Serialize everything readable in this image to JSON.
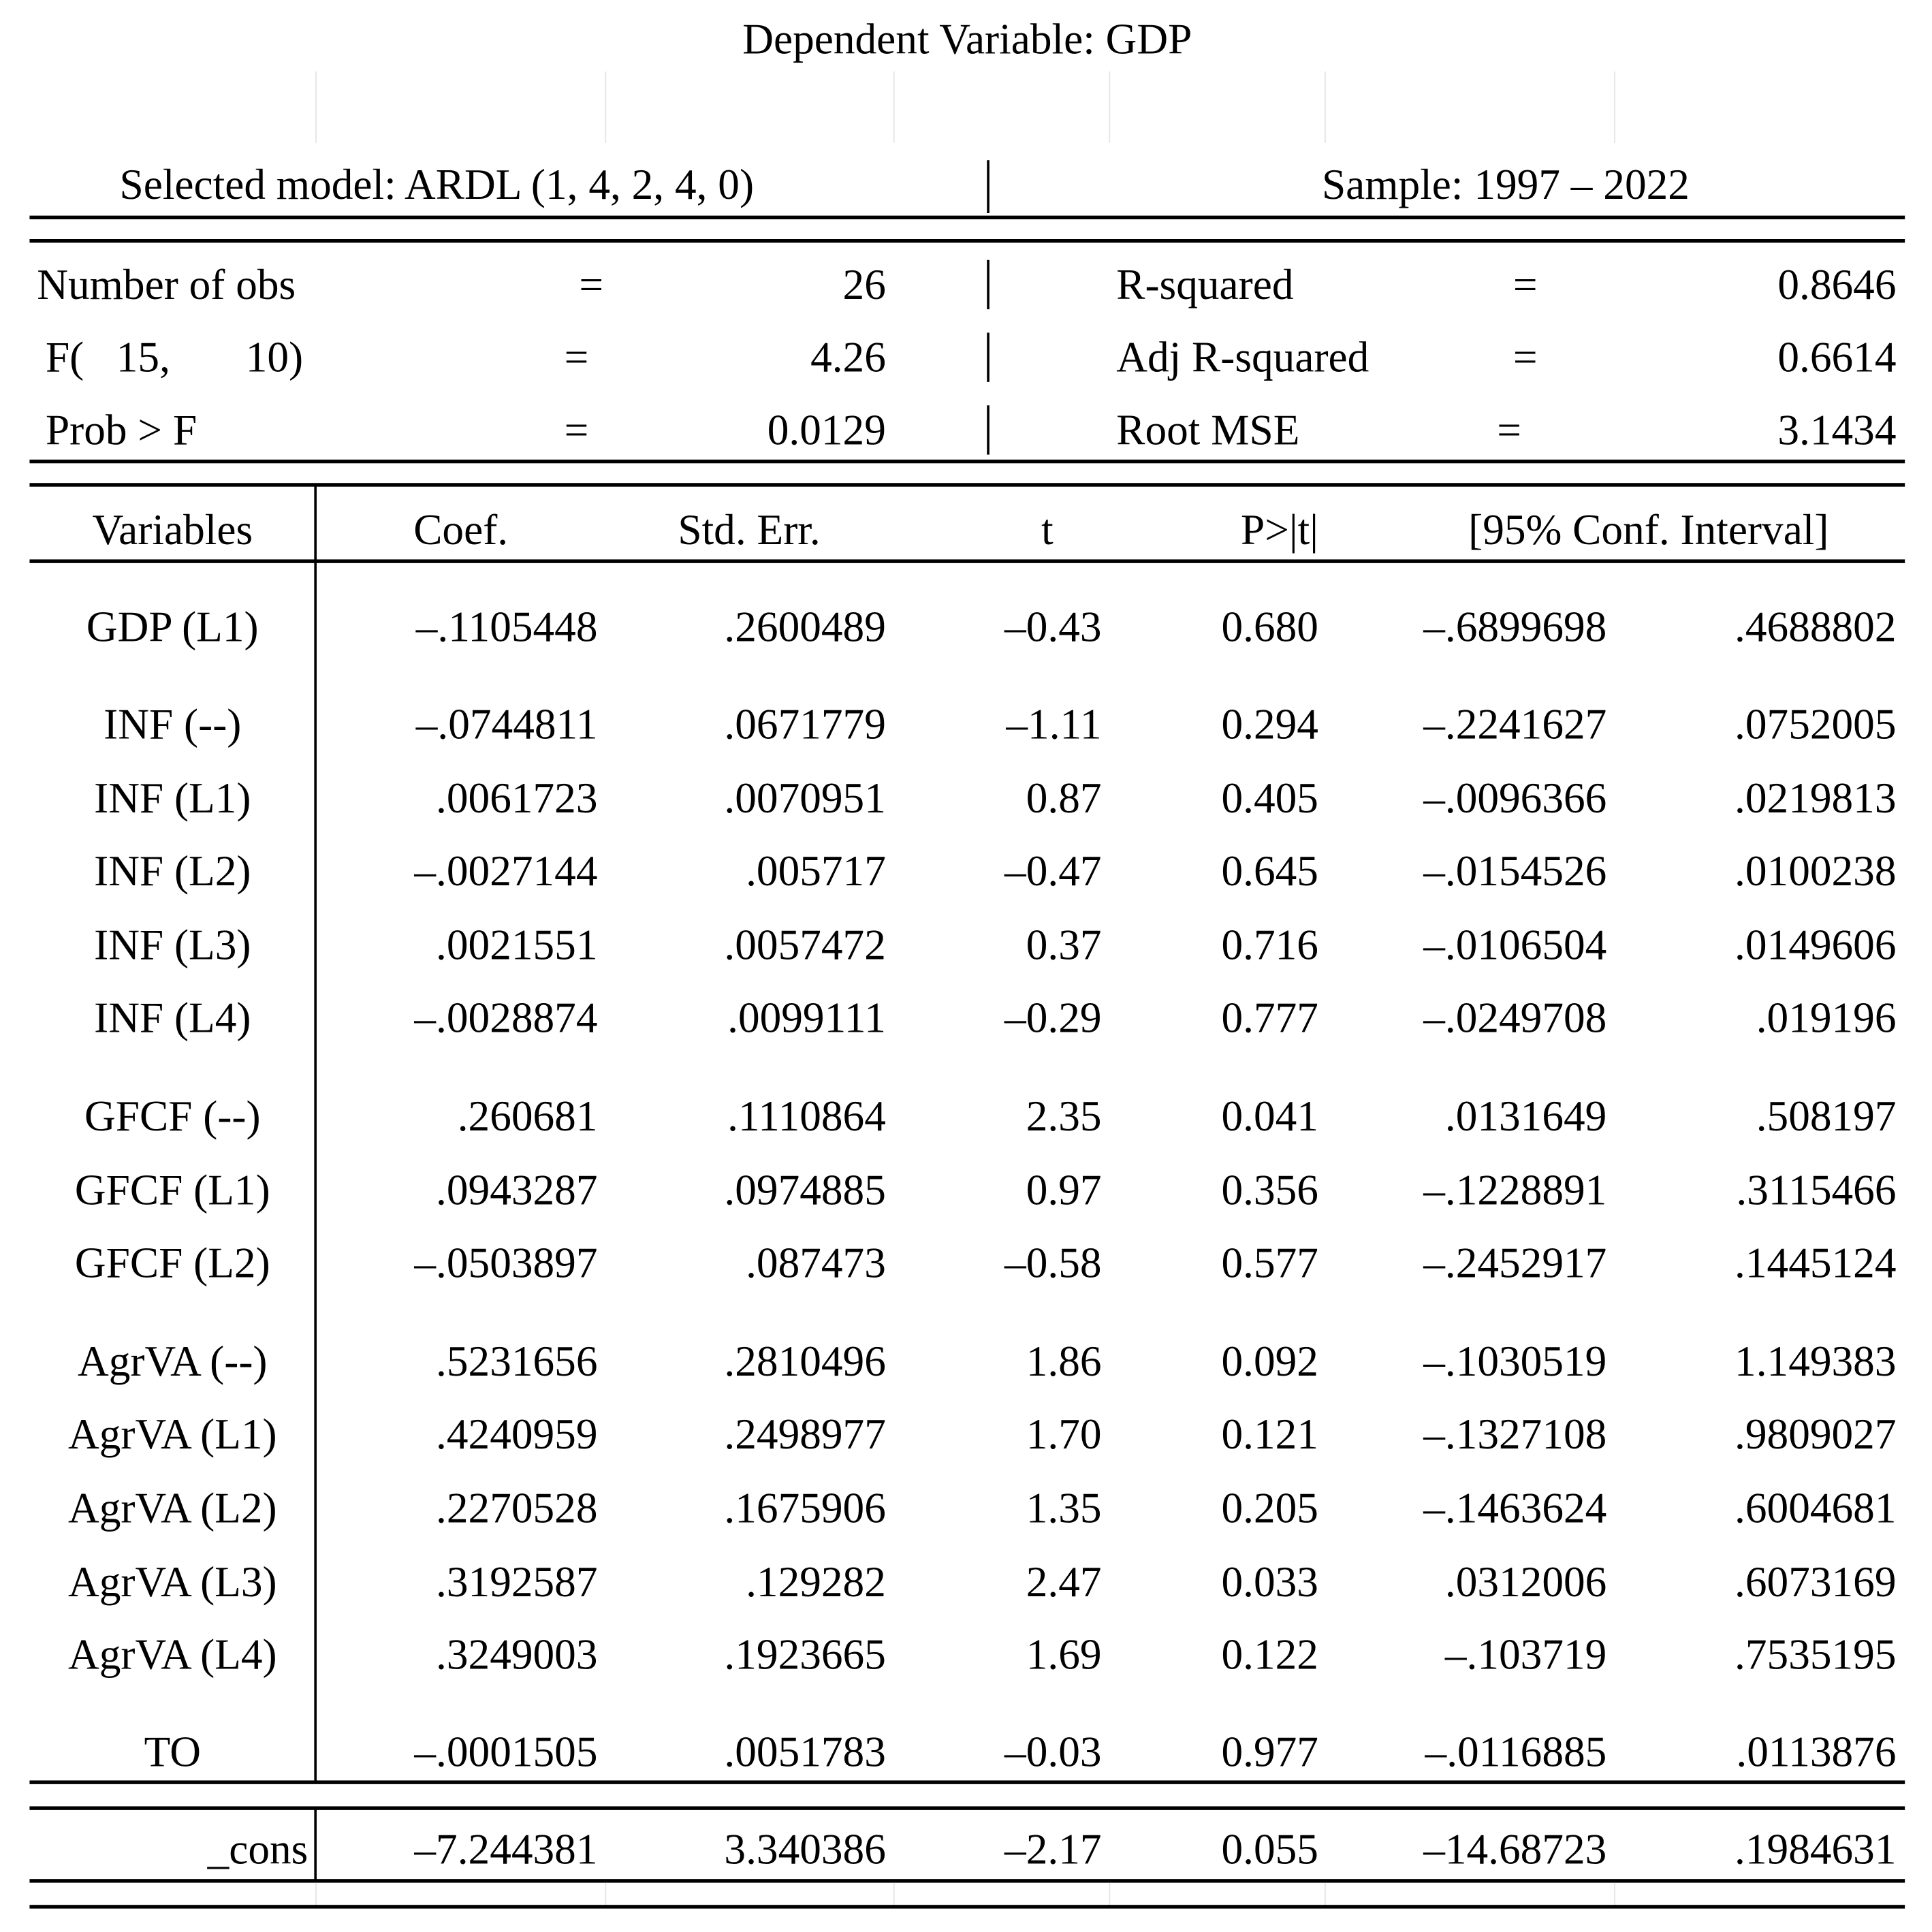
{
  "title": "Dependent Variable: GDP",
  "model": {
    "selected": "Selected model: ARDL (1, 4, 2, 4, 0)",
    "sample": "Sample: 1997 – 2022"
  },
  "stats_left": [
    {
      "label": "Number of obs",
      "eq": "=",
      "value": "26"
    },
    {
      "label": "F(   15,       10)",
      "eq": "=",
      "value": "4.26"
    },
    {
      "label": "Prob > F",
      "eq": "=",
      "value": "0.0129"
    }
  ],
  "stats_right": [
    {
      "label": "R-squared",
      "eq": "=",
      "value": "0.8646"
    },
    {
      "label": "Adj R-squared",
      "eq": "=",
      "value": "0.6614"
    },
    {
      "label": "Root MSE",
      "eq": "=",
      "value": "3.1434"
    }
  ],
  "headers": {
    "variables": "Variables",
    "coef": "Coef.",
    "se": "Std. Err.",
    "t": "t",
    "p": "P>|t|",
    "ci": "[95% Conf. Interval]"
  },
  "rows": [
    {
      "var": "GDP (L1)",
      "coef": "–.1105448",
      "se": ".2600489",
      "t": "–0.43",
      "p": "0.680",
      "lo": "–.6899698",
      "hi": ".4688802"
    },
    {
      "var": "INF (--)",
      "coef": "–.0744811",
      "se": ".0671779",
      "t": "–1.11",
      "p": "0.294",
      "lo": "–.2241627",
      "hi": ".0752005"
    },
    {
      "var": "INF (L1)",
      "coef": ".0061723",
      "se": ".0070951",
      "t": "0.87",
      "p": "0.405",
      "lo": "–.0096366",
      "hi": ".0219813"
    },
    {
      "var": "INF (L2)",
      "coef": "–.0027144",
      "se": ".005717",
      "t": "–0.47",
      "p": "0.645",
      "lo": "–.0154526",
      "hi": ".0100238"
    },
    {
      "var": "INF (L3)",
      "coef": ".0021551",
      "se": ".0057472",
      "t": "0.37",
      "p": "0.716",
      "lo": "–.0106504",
      "hi": ".0149606"
    },
    {
      "var": "INF (L4)",
      "coef": "–.0028874",
      "se": ".0099111",
      "t": "–0.29",
      "p": "0.777",
      "lo": "–.0249708",
      "hi": ".019196"
    },
    {
      "var": "GFCF (--)",
      "coef": ".260681",
      "se": ".1110864",
      "t": "2.35",
      "p": "0.041",
      "lo": ".0131649",
      "hi": ".508197"
    },
    {
      "var": "GFCF (L1)",
      "coef": ".0943287",
      "se": ".0974885",
      "t": "0.97",
      "p": "0.356",
      "lo": "–.1228891",
      "hi": ".3115466"
    },
    {
      "var": "GFCF (L2)",
      "coef": "–.0503897",
      "se": ".087473",
      "t": "–0.58",
      "p": "0.577",
      "lo": "–.2452917",
      "hi": ".1445124"
    },
    {
      "var": "AgrVA (--)",
      "coef": ".5231656",
      "se": ".2810496",
      "t": "1.86",
      "p": "0.092",
      "lo": "–.1030519",
      "hi": "1.149383"
    },
    {
      "var": "AgrVA (L1)",
      "coef": ".4240959",
      "se": ".2498977",
      "t": "1.70",
      "p": "0.121",
      "lo": "–.1327108",
      "hi": ".9809027"
    },
    {
      "var": "AgrVA (L2)",
      "coef": ".2270528",
      "se": ".1675906",
      "t": "1.35",
      "p": "0.205",
      "lo": "–.1463624",
      "hi": ".6004681"
    },
    {
      "var": "AgrVA (L3)",
      "coef": ".3192587",
      "se": ".129282",
      "t": "2.47",
      "p": "0.033",
      "lo": ".0312006",
      "hi": ".6073169"
    },
    {
      "var": "AgrVA (L4)",
      "coef": ".3249003",
      "se": ".1923665",
      "t": "1.69",
      "p": "0.122",
      "lo": "–.103719",
      "hi": ".7535195"
    },
    {
      "var": "TO",
      "coef": "–.0001505",
      "se": ".0051783",
      "t": "–0.03",
      "p": "0.977",
      "lo": "–.0116885",
      "hi": ".0113876"
    }
  ],
  "cons": {
    "var": "_cons",
    "coef": "–7.244381",
    "se": "3.340386",
    "t": "–2.17",
    "p": "0.055",
    "lo": "–14.68723",
    "hi": ".1984631"
  }
}
